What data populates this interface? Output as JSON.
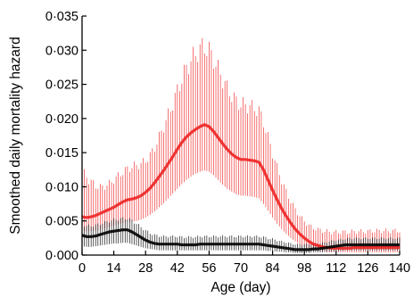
{
  "chart_data": {
    "type": "line",
    "xlabel": "Age (day)",
    "ylabel": "Smoothed daily mortality hazard",
    "xlim": [
      0,
      140
    ],
    "ylim": [
      0,
      0.035
    ],
    "x_ticks": [
      0,
      14,
      28,
      42,
      56,
      70,
      84,
      98,
      112,
      126,
      140
    ],
    "x_tick_labels": [
      "0",
      "14",
      "28",
      "42",
      "56",
      "70",
      "84",
      "98",
      "112",
      "126",
      "140"
    ],
    "y_ticks": [
      0,
      0.005,
      0.01,
      0.015,
      0.02,
      0.025,
      0.03,
      0.035
    ],
    "y_tick_labels": [
      "0·000",
      "0·005",
      "0·010",
      "0·015",
      "0·020",
      "0·025",
      "0·030",
      "0·035"
    ],
    "grid": false,
    "legend": "none",
    "series": [
      {
        "color": "#ee2222",
        "x": [
          0,
          2,
          4,
          6,
          8,
          10,
          12,
          14,
          16,
          18,
          20,
          22,
          24,
          26,
          28,
          30,
          32,
          34,
          36,
          38,
          40,
          42,
          44,
          46,
          48,
          50,
          52,
          54,
          56,
          58,
          60,
          62,
          64,
          66,
          68,
          70,
          72,
          74,
          76,
          78,
          80,
          82,
          84,
          86,
          88,
          90,
          92,
          94,
          96,
          98,
          100,
          102,
          104,
          106,
          108,
          110,
          112,
          114,
          116,
          118,
          120,
          122,
          124,
          126,
          128,
          130,
          132,
          134,
          136,
          138,
          140
        ],
        "y": [
          0.0056,
          0.0055,
          0.0056,
          0.0058,
          0.0061,
          0.0064,
          0.0067,
          0.007,
          0.0074,
          0.0078,
          0.0081,
          0.0082,
          0.0084,
          0.0087,
          0.0092,
          0.0098,
          0.0106,
          0.0115,
          0.0124,
          0.0134,
          0.0144,
          0.0155,
          0.0165,
          0.0173,
          0.0179,
          0.0184,
          0.0188,
          0.0191,
          0.0188,
          0.0181,
          0.0172,
          0.0163,
          0.0155,
          0.0148,
          0.0143,
          0.014,
          0.014,
          0.0139,
          0.0138,
          0.0136,
          0.0125,
          0.011,
          0.0095,
          0.0081,
          0.0068,
          0.0057,
          0.0047,
          0.0038,
          0.0031,
          0.0025,
          0.002,
          0.0016,
          0.0014,
          0.0012,
          0.0011,
          0.001,
          0.001,
          0.001,
          0.001,
          0.001,
          0.0011,
          0.0011,
          0.0011,
          0.0011,
          0.0011,
          0.0011,
          0.0011,
          0.0011,
          0.0011,
          0.0011,
          0.0011
        ],
        "lower": [
          0.0036,
          0.0035,
          0.0035,
          0.0036,
          0.0037,
          0.0039,
          0.0041,
          0.0043,
          0.0045,
          0.0047,
          0.0048,
          0.0049,
          0.005,
          0.0052,
          0.0055,
          0.0059,
          0.0064,
          0.007,
          0.0076,
          0.0083,
          0.009,
          0.0097,
          0.0104,
          0.011,
          0.0115,
          0.0119,
          0.0122,
          0.0124,
          0.0122,
          0.0117,
          0.011,
          0.0103,
          0.0097,
          0.0093,
          0.0089,
          0.0087,
          0.0087,
          0.0086,
          0.0085,
          0.0083,
          0.0075,
          0.0065,
          0.0055,
          0.0046,
          0.0038,
          0.0031,
          0.0025,
          0.002,
          0.0016,
          0.0012,
          0.0009,
          0.0007,
          0.0006,
          0.0005,
          0.0004,
          0.0004,
          0.0004,
          0.0004,
          0.0004,
          0.0004,
          0.0004,
          0.0004,
          0.0004,
          0.0004,
          0.0004,
          0.0004,
          0.0004,
          0.0004,
          0.0004,
          0.0004,
          0.0004
        ],
        "upper": [
          0.0128,
          0.0124,
          0.0114,
          0.0108,
          0.0105,
          0.0106,
          0.011,
          0.0116,
          0.0122,
          0.0128,
          0.0133,
          0.0136,
          0.0138,
          0.014,
          0.0145,
          0.0153,
          0.0165,
          0.0181,
          0.0198,
          0.0215,
          0.0233,
          0.0253,
          0.0272,
          0.0288,
          0.03,
          0.031,
          0.0318,
          0.0322,
          0.0315,
          0.0302,
          0.0286,
          0.0271,
          0.0257,
          0.0246,
          0.0237,
          0.0232,
          0.0231,
          0.0229,
          0.0226,
          0.0222,
          0.0205,
          0.0181,
          0.0157,
          0.0135,
          0.0115,
          0.0098,
          0.0083,
          0.0071,
          0.0061,
          0.0053,
          0.0047,
          0.0043,
          0.0041,
          0.0039,
          0.0038,
          0.0037,
          0.0037,
          0.0037,
          0.0037,
          0.0037,
          0.0038,
          0.0038,
          0.0038,
          0.0038,
          0.0039,
          0.0039,
          0.0039,
          0.0039,
          0.0039,
          0.0039,
          0.0039
        ]
      },
      {
        "color": "#000000",
        "x": [
          0,
          2,
          4,
          6,
          8,
          10,
          12,
          14,
          16,
          18,
          20,
          22,
          24,
          26,
          28,
          30,
          32,
          34,
          36,
          38,
          40,
          42,
          44,
          46,
          48,
          50,
          52,
          54,
          56,
          58,
          60,
          62,
          64,
          66,
          68,
          70,
          72,
          74,
          76,
          78,
          80,
          82,
          84,
          86,
          88,
          90,
          92,
          94,
          96,
          98,
          100,
          102,
          104,
          106,
          108,
          110,
          112,
          114,
          116,
          118,
          120,
          122,
          124,
          126,
          128,
          130,
          132,
          134,
          136,
          138,
          140
        ],
        "y": [
          0.0029,
          0.0027,
          0.0027,
          0.0028,
          0.003,
          0.0032,
          0.0034,
          0.0035,
          0.0036,
          0.0037,
          0.0037,
          0.0034,
          0.003,
          0.0026,
          0.0022,
          0.0019,
          0.0017,
          0.0016,
          0.0016,
          0.0016,
          0.0016,
          0.0016,
          0.0015,
          0.0015,
          0.0015,
          0.0015,
          0.0016,
          0.0016,
          0.0016,
          0.0016,
          0.0016,
          0.0016,
          0.0016,
          0.0016,
          0.0016,
          0.0016,
          0.0016,
          0.0016,
          0.0016,
          0.0016,
          0.0015,
          0.0014,
          0.0013,
          0.0012,
          0.0011,
          0.001,
          0.0009,
          0.0008,
          0.0008,
          0.0008,
          0.0008,
          0.0009,
          0.0009,
          0.001,
          0.0011,
          0.0012,
          0.0013,
          0.0014,
          0.0015,
          0.0015,
          0.0015,
          0.0015,
          0.0015,
          0.0015,
          0.0015,
          0.0015,
          0.0015,
          0.0015,
          0.0015,
          0.0015,
          0.0015
        ],
        "lower": [
          0.0013,
          0.0012,
          0.0012,
          0.0013,
          0.0014,
          0.0015,
          0.0016,
          0.0017,
          0.0017,
          0.0018,
          0.0018,
          0.0016,
          0.0014,
          0.0012,
          0.001,
          0.0009,
          0.0008,
          0.0007,
          0.0007,
          0.0007,
          0.0007,
          0.0007,
          0.0007,
          0.0007,
          0.0007,
          0.0007,
          0.0007,
          0.0007,
          0.0007,
          0.0007,
          0.0007,
          0.0007,
          0.0007,
          0.0007,
          0.0007,
          0.0007,
          0.0007,
          0.0007,
          0.0007,
          0.0007,
          0.0007,
          0.0006,
          0.0006,
          0.0005,
          0.0005,
          0.0004,
          0.0004,
          0.0003,
          0.0003,
          0.0003,
          0.0003,
          0.0004,
          0.0004,
          0.0004,
          0.0005,
          0.0005,
          0.0006,
          0.0006,
          0.0007,
          0.0007,
          0.0007,
          0.0007,
          0.0007,
          0.0007,
          0.0007,
          0.0007,
          0.0007,
          0.0007,
          0.0007,
          0.0007,
          0.0007
        ],
        "upper": [
          0.0047,
          0.0045,
          0.0045,
          0.0046,
          0.0048,
          0.005,
          0.0052,
          0.0054,
          0.0055,
          0.0056,
          0.0056,
          0.0053,
          0.0048,
          0.0043,
          0.0038,
          0.0034,
          0.0031,
          0.003,
          0.0029,
          0.0029,
          0.0029,
          0.0029,
          0.0028,
          0.0028,
          0.0028,
          0.0028,
          0.0029,
          0.0029,
          0.0029,
          0.0029,
          0.0029,
          0.0029,
          0.0029,
          0.0029,
          0.0029,
          0.0029,
          0.0029,
          0.0029,
          0.0029,
          0.0029,
          0.0028,
          0.0026,
          0.0025,
          0.0023,
          0.0021,
          0.002,
          0.0018,
          0.0017,
          0.0017,
          0.0017,
          0.0017,
          0.0018,
          0.0018,
          0.0019,
          0.002,
          0.0022,
          0.0023,
          0.0024,
          0.0025,
          0.0026,
          0.0026,
          0.0026,
          0.0026,
          0.0026,
          0.0026,
          0.0026,
          0.0026,
          0.0026,
          0.0026,
          0.0026,
          0.0026
        ]
      }
    ]
  }
}
